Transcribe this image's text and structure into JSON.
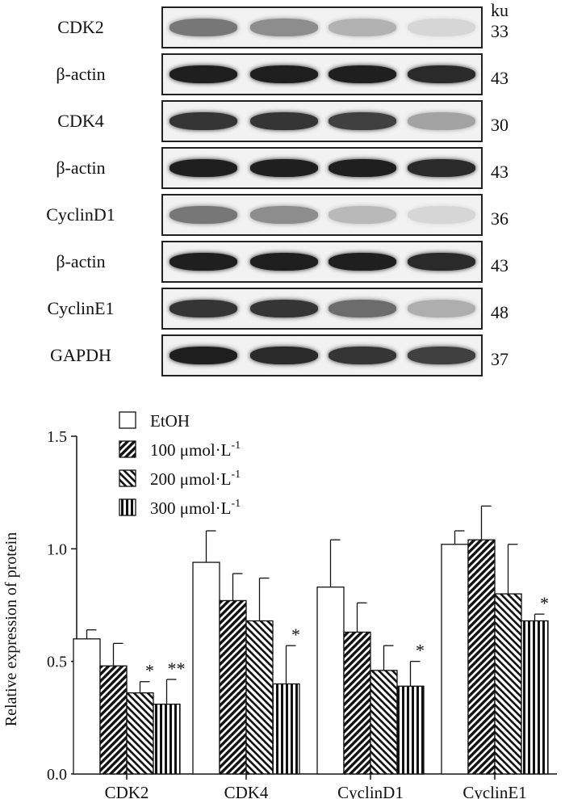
{
  "blot": {
    "unit_header": "ku",
    "rows": [
      {
        "label": "CDK2",
        "ku": "33",
        "intensity": [
          0.55,
          0.45,
          0.28,
          0.12
        ]
      },
      {
        "label": "β-actin",
        "ku": "43",
        "intensity": [
          0.95,
          0.95,
          0.95,
          0.9
        ]
      },
      {
        "label": "CDK4",
        "ku": "30",
        "intensity": [
          0.85,
          0.85,
          0.8,
          0.35
        ]
      },
      {
        "label": "β-actin",
        "ku": "43",
        "intensity": [
          0.95,
          0.95,
          0.95,
          0.9
        ]
      },
      {
        "label": "CyclinD1",
        "ku": "36",
        "intensity": [
          0.55,
          0.45,
          0.25,
          0.12
        ]
      },
      {
        "label": "β-actin",
        "ku": "43",
        "intensity": [
          0.95,
          0.95,
          0.95,
          0.9
        ]
      },
      {
        "label": "CyclinE1",
        "ku": "48",
        "intensity": [
          0.85,
          0.85,
          0.6,
          0.3
        ]
      },
      {
        "label": "GAPDH",
        "ku": "37",
        "intensity": [
          0.95,
          0.9,
          0.85,
          0.8
        ]
      }
    ]
  },
  "chart_data": {
    "type": "bar",
    "categories": [
      "CDK2",
      "CDK4",
      "CyclinD1",
      "CyclinE1"
    ],
    "ylabel": "Relative expression of protein",
    "ylim": [
      0,
      1.5
    ],
    "yticks": [
      "0.0",
      "0.5",
      "1.0",
      "1.5"
    ],
    "legend_position": "top-left",
    "series": [
      {
        "name": "EtOH",
        "values": [
          0.6,
          0.94,
          0.83,
          1.02
        ],
        "errors": [
          0.04,
          0.14,
          0.21,
          0.06
        ],
        "pattern": "open",
        "sig": [
          "",
          "",
          "",
          ""
        ]
      },
      {
        "name": "100 μmol·L",
        "sup": "-1",
        "values": [
          0.48,
          0.77,
          0.63,
          1.04
        ],
        "errors": [
          0.1,
          0.12,
          0.13,
          0.15
        ],
        "pattern": "forward-hatch",
        "sig": [
          "",
          "",
          "",
          ""
        ]
      },
      {
        "name": "200 μmol·L",
        "sup": "-1",
        "values": [
          0.36,
          0.68,
          0.46,
          0.8
        ],
        "errors": [
          0.05,
          0.19,
          0.11,
          0.22
        ],
        "pattern": "back-hatch",
        "sig": [
          "*",
          "",
          "",
          ""
        ]
      },
      {
        "name": "300 μmol·L",
        "sup": "-1",
        "values": [
          0.31,
          0.4,
          0.39,
          0.68
        ],
        "errors": [
          0.11,
          0.17,
          0.11,
          0.03
        ],
        "pattern": "vertical",
        "sig": [
          "**",
          "*",
          "*",
          "*"
        ]
      }
    ]
  }
}
